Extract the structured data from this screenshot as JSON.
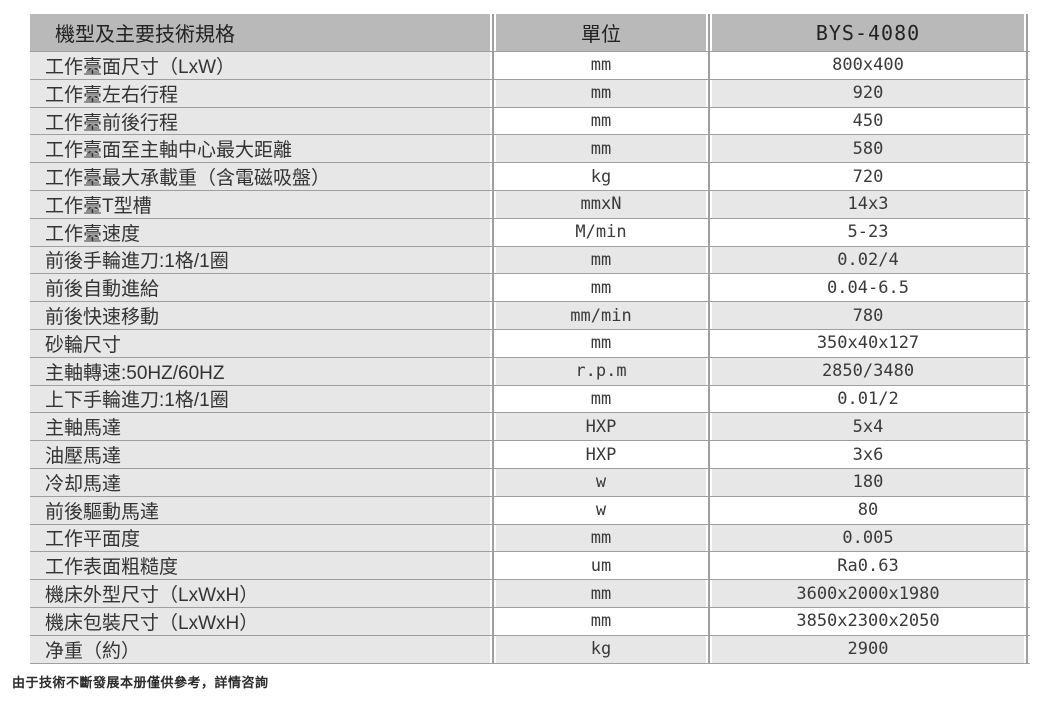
{
  "table": {
    "header": {
      "spec": "機型及主要技術規格",
      "unit": "單位",
      "model": "BYS-4080"
    },
    "rows": [
      {
        "label": "工作臺面尺寸（LxW）",
        "unit": "mm",
        "value": "800x400"
      },
      {
        "label": "工作臺左右行程",
        "unit": "mm",
        "value": "920"
      },
      {
        "label": "工作臺前後行程",
        "unit": "mm",
        "value": "450"
      },
      {
        "label": "工作臺面至主軸中心最大距離",
        "unit": "mm",
        "value": "580"
      },
      {
        "label": "工作臺最大承載重（含電磁吸盤）",
        "unit": "kg",
        "value": "720"
      },
      {
        "label": "工作臺T型槽",
        "unit": "mmxN",
        "value": "14x3"
      },
      {
        "label": "工作臺速度",
        "unit": "M/min",
        "value": "5-23"
      },
      {
        "label": "前後手輪進刀:1格/1圈",
        "unit": "mm",
        "value": "0.02/4"
      },
      {
        "label": "前後自動進給",
        "unit": "mm",
        "value": "0.04-6.5"
      },
      {
        "label": "前後快速移動",
        "unit": "mm/min",
        "value": "780"
      },
      {
        "label": "砂輪尺寸",
        "unit": "mm",
        "value": "350x40x127"
      },
      {
        "label": "主軸轉速:50HZ/60HZ",
        "unit": "r.p.m",
        "value": "2850/3480"
      },
      {
        "label": "上下手輪進刀:1格/1圈",
        "unit": "mm",
        "value": "0.01/2"
      },
      {
        "label": "主軸馬達",
        "unit": "HXP",
        "value": "5x4"
      },
      {
        "label": "油壓馬達",
        "unit": "HXP",
        "value": "3x6"
      },
      {
        "label": "冷却馬達",
        "unit": "w",
        "value": "180"
      },
      {
        "label": "前後驅動馬達",
        "unit": "w",
        "value": "80"
      },
      {
        "label": "工作平面度",
        "unit": "mm",
        "value": "0.005"
      },
      {
        "label": "工作表面粗糙度",
        "unit": "um",
        "value": "Ra0.63"
      },
      {
        "label": "機床外型尺寸（LxWxH）",
        "unit": "mm",
        "value": "3600x2000x1980"
      },
      {
        "label": "機床包裝尺寸（LxWxH）",
        "unit": "mm",
        "value": "3850x2300x2050"
      },
      {
        "label": "净重（約）",
        "unit": "kg",
        "value": "2900"
      }
    ],
    "colors": {
      "header_bg": "#b9b9b9",
      "row_bg": "#ffffff",
      "row_alt_bg": "#e7e7e7",
      "label_col_bg": "#e7e7e7",
      "grid_line": "#9f9f9f",
      "text": "#333333"
    }
  },
  "footer": {
    "note": "由于技術不斷發展本册僅供參考，詳情咨詢"
  }
}
